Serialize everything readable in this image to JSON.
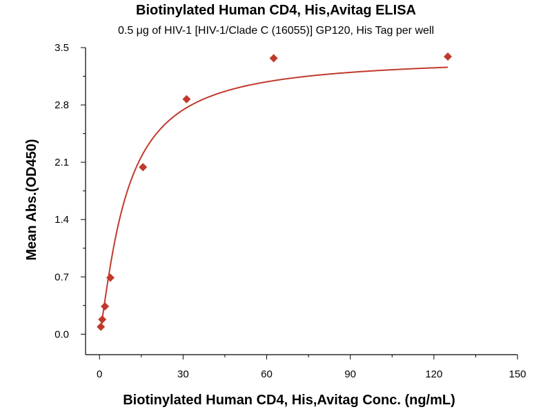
{
  "chart_data": {
    "type": "scatter",
    "title": "Biotinylated Human CD4, His,Avitag ELISA",
    "subtitle": "0.5 μg of HIV-1 [HIV-1/Clade C (16055)] GP120, His Tag per well",
    "xlabel": "Biotinylated Human CD4, His,Avitag Conc. (ng/mL)",
    "ylabel": "Mean Abs.(OD450)",
    "xlim": [
      -5,
      150
    ],
    "ylim": [
      -0.25,
      3.5
    ],
    "xticks": [
      "0",
      "30",
      "60",
      "90",
      "120",
      "150"
    ],
    "yticks": [
      "0.0",
      "0.7",
      "1.4",
      "2.1",
      "2.8",
      "3.5"
    ],
    "grid": false,
    "legend": "none",
    "marker": "diamond",
    "color": "#c0392b",
    "series": [
      {
        "x": [
          0.49,
          0.98,
          1.95,
          3.9,
          15.6,
          31.25,
          62.5,
          125
        ],
        "y": [
          0.09,
          0.18,
          0.34,
          0.69,
          2.04,
          2.87,
          3.37,
          3.39
        ]
      }
    ],
    "fit": {
      "type": "4PL",
      "bottom": 0.0,
      "top": 3.39,
      "ec50": 9.5,
      "hill": 1.25
    }
  }
}
